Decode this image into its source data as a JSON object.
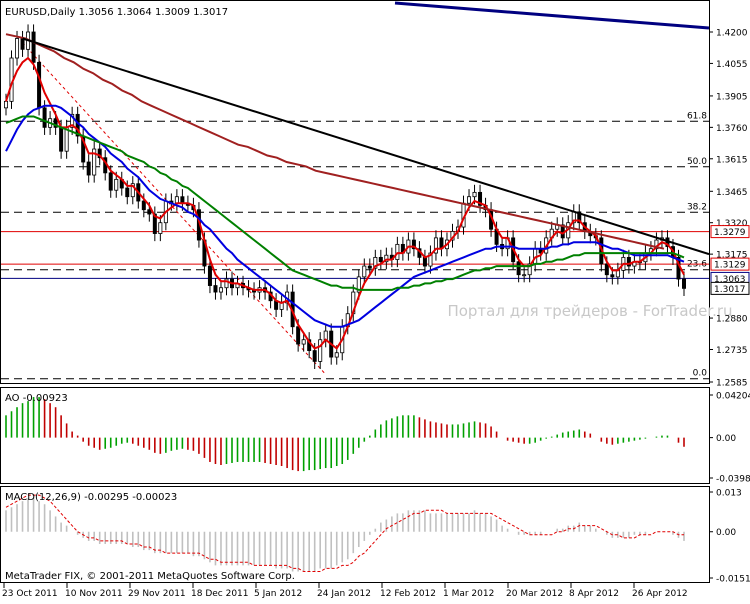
{
  "chart_data": [
    {
      "type": "line",
      "title": "EURUSD,Daily  1.3056 1.3064 1.3009 1.3017",
      "watermark": "Портал для трейдеров - ForTrader.ru",
      "y_ticks": [
        "1.4200",
        "1.4055",
        "1.3905",
        "1.3760",
        "1.3615",
        "1.3465",
        "1.3320",
        "1.3175",
        "1.2880",
        "1.2735",
        "1.2585"
      ],
      "ylim": [
        1.2585,
        1.42
      ],
      "price_labels": [
        {
          "value": 1.3279,
          "text": "1.3279",
          "color": "#e00000"
        },
        {
          "value": 1.3129,
          "text": "1.3129",
          "color": "#e00000"
        },
        {
          "value": 1.3063,
          "text": "1.3063",
          "color": "#000080"
        },
        {
          "value": 1.3017,
          "text": "1.3017",
          "color": "#000000"
        }
      ],
      "fib_levels": [
        {
          "label": "61.8",
          "value": 1.3788
        },
        {
          "label": "50.0",
          "value": 1.3578
        },
        {
          "label": "38.2",
          "value": 1.3368
        },
        {
          "label": "23.6",
          "value": 1.3103
        },
        {
          "label": "0.0",
          "value": 1.26
        }
      ],
      "x_labels": [
        "23 Oct 2011",
        "10 Nov 2011",
        "29 Nov 2011",
        "18 Dec 2011",
        "5 Jan 2012",
        "24 Jan 2012",
        "12 Feb 2012",
        "1 Mar 2012",
        "20 Mar 2012",
        "8 Apr 2012",
        "26 Apr 2012"
      ],
      "close": [
        1.388,
        1.408,
        1.417,
        1.412,
        1.42,
        1.406,
        1.385,
        1.376,
        1.38,
        1.376,
        1.365,
        1.376,
        1.382,
        1.372,
        1.36,
        1.354,
        1.366,
        1.362,
        1.355,
        1.347,
        1.352,
        1.348,
        1.344,
        1.35,
        1.342,
        1.338,
        1.336,
        1.327,
        1.332,
        1.342,
        1.341,
        1.344,
        1.341,
        1.34,
        1.338,
        1.324,
        1.312,
        1.303,
        1.3,
        1.302,
        1.306,
        1.302,
        1.304,
        1.302,
        1.301,
        1.3,
        1.302,
        1.3,
        1.296,
        1.292,
        1.295,
        1.3,
        1.284,
        1.276,
        1.278,
        1.273,
        1.268,
        1.278,
        1.282,
        1.27,
        1.272,
        1.284,
        1.29,
        1.3,
        1.307,
        1.312,
        1.311,
        1.316,
        1.314,
        1.317,
        1.315,
        1.322,
        1.318,
        1.324,
        1.32,
        1.316,
        1.312,
        1.318,
        1.325,
        1.32,
        1.324,
        1.328,
        1.33,
        1.341,
        1.344,
        1.346,
        1.34,
        1.338,
        1.329,
        1.322,
        1.32,
        1.325,
        1.314,
        1.308,
        1.308,
        1.313,
        1.32,
        1.318,
        1.325,
        1.329,
        1.331,
        1.325,
        1.332,
        1.337,
        1.332,
        1.328,
        1.326,
        1.325,
        1.313,
        1.308,
        1.307,
        1.31,
        1.316,
        1.312,
        1.314,
        1.314,
        1.318,
        1.32,
        1.324,
        1.325,
        1.321,
        1.316,
        1.306,
        1.3017
      ],
      "moving_averages": [
        {
          "color": "#e00000",
          "values": [
            1.388,
            1.396,
            1.402,
            1.406,
            1.408,
            1.405,
            1.399,
            1.392,
            1.387,
            1.382,
            1.376,
            1.376,
            1.377,
            1.375,
            1.37,
            1.364,
            1.364,
            1.363,
            1.36,
            1.356,
            1.354,
            1.352,
            1.349,
            1.349,
            1.346,
            1.343,
            1.34,
            1.335,
            1.334,
            1.337,
            1.339,
            1.341,
            1.341,
            1.341,
            1.34,
            1.333,
            1.324,
            1.315,
            1.308,
            1.305,
            1.305,
            1.304,
            1.304,
            1.303,
            1.302,
            1.301,
            1.301,
            1.301,
            1.299,
            1.296,
            1.295,
            1.296,
            1.291,
            1.285,
            1.281,
            1.277,
            1.274,
            1.275,
            1.278,
            1.276,
            1.274,
            1.278,
            1.284,
            1.291,
            1.298,
            1.304,
            1.308,
            1.312,
            1.313,
            1.315,
            1.315,
            1.318,
            1.318,
            1.321,
            1.321,
            1.319,
            1.316,
            1.317,
            1.32,
            1.32,
            1.322,
            1.325,
            1.328,
            1.334,
            1.339,
            1.342,
            1.341,
            1.34,
            1.335,
            1.329,
            1.325,
            1.325,
            1.32,
            1.315,
            1.312,
            1.312,
            1.316,
            1.317,
            1.321,
            1.325,
            1.328,
            1.327,
            1.329,
            1.333,
            1.333,
            1.33,
            1.328,
            1.326,
            1.32,
            1.314,
            1.31,
            1.31,
            1.313,
            1.313,
            1.314,
            1.314,
            1.316,
            1.318,
            1.321,
            1.323,
            1.322,
            1.319,
            1.313,
            1.308
          ]
        },
        {
          "color": "#0000e0",
          "values": [
            1.365,
            1.37,
            1.375,
            1.379,
            1.382,
            1.384,
            1.385,
            1.386,
            1.386,
            1.386,
            1.385,
            1.383,
            1.381,
            1.378,
            1.376,
            1.373,
            1.371,
            1.369,
            1.367,
            1.364,
            1.362,
            1.36,
            1.357,
            1.355,
            1.353,
            1.35,
            1.347,
            1.345,
            1.343,
            1.342,
            1.341,
            1.34,
            1.339,
            1.337,
            1.336,
            1.334,
            1.331,
            1.329,
            1.326,
            1.323,
            1.32,
            1.318,
            1.315,
            1.313,
            1.311,
            1.309,
            1.307,
            1.305,
            1.303,
            1.301,
            1.299,
            1.297,
            1.295,
            1.293,
            1.291,
            1.289,
            1.287,
            1.286,
            1.285,
            1.284,
            1.284,
            1.284,
            1.285,
            1.286,
            1.287,
            1.289,
            1.291,
            1.293,
            1.295,
            1.297,
            1.299,
            1.301,
            1.303,
            1.305,
            1.307,
            1.308,
            1.309,
            1.31,
            1.311,
            1.312,
            1.313,
            1.314,
            1.315,
            1.316,
            1.317,
            1.318,
            1.319,
            1.32,
            1.32,
            1.321,
            1.321,
            1.321,
            1.321,
            1.32,
            1.32,
            1.32,
            1.32,
            1.32,
            1.32,
            1.321,
            1.321,
            1.322,
            1.322,
            1.323,
            1.323,
            1.323,
            1.323,
            1.323,
            1.322,
            1.321,
            1.32,
            1.32,
            1.319,
            1.318,
            1.317,
            1.317,
            1.317,
            1.317,
            1.317,
            1.317,
            1.317,
            1.316,
            1.315,
            1.314
          ]
        },
        {
          "color": "#008000",
          "values": [
            1.378,
            1.379,
            1.38,
            1.381,
            1.381,
            1.381,
            1.38,
            1.379,
            1.378,
            1.377,
            1.376,
            1.375,
            1.374,
            1.373,
            1.372,
            1.371,
            1.37,
            1.369,
            1.368,
            1.367,
            1.366,
            1.365,
            1.363,
            1.362,
            1.361,
            1.36,
            1.358,
            1.357,
            1.355,
            1.354,
            1.352,
            1.351,
            1.349,
            1.348,
            1.346,
            1.344,
            1.342,
            1.34,
            1.338,
            1.336,
            1.334,
            1.332,
            1.33,
            1.328,
            1.326,
            1.324,
            1.322,
            1.32,
            1.318,
            1.316,
            1.314,
            1.312,
            1.31,
            1.309,
            1.308,
            1.307,
            1.306,
            1.305,
            1.304,
            1.303,
            1.303,
            1.302,
            1.302,
            1.302,
            1.301,
            1.301,
            1.301,
            1.301,
            1.301,
            1.301,
            1.301,
            1.302,
            1.302,
            1.302,
            1.303,
            1.303,
            1.304,
            1.304,
            1.305,
            1.305,
            1.306,
            1.306,
            1.307,
            1.308,
            1.309,
            1.31,
            1.31,
            1.311,
            1.311,
            1.312,
            1.312,
            1.312,
            1.312,
            1.312,
            1.312,
            1.312,
            1.313,
            1.313,
            1.314,
            1.314,
            1.315,
            1.315,
            1.316,
            1.317,
            1.317,
            1.318,
            1.318,
            1.318,
            1.318,
            1.318,
            1.318,
            1.318,
            1.318,
            1.318,
            1.318,
            1.318,
            1.318,
            1.318,
            1.318,
            1.318,
            1.318,
            1.318,
            1.317,
            1.316
          ]
        },
        {
          "color": "#a02020",
          "values": [
            1.419,
            1.418,
            1.417,
            1.415,
            1.413,
            1.411,
            1.408,
            1.406,
            1.403,
            1.401,
            1.398,
            1.396,
            1.393,
            1.391,
            1.388,
            1.386,
            1.384,
            1.382,
            1.38,
            1.378,
            1.376,
            1.374,
            1.372,
            1.37,
            1.368,
            1.367,
            1.365,
            1.363,
            1.362,
            1.36,
            1.359,
            1.358,
            1.356,
            1.355,
            1.354,
            1.353,
            1.352,
            1.351,
            1.35,
            1.349,
            1.348,
            1.347,
            1.346,
            1.345,
            1.344,
            1.343,
            1.342,
            1.341,
            1.34,
            1.339,
            1.338,
            1.337,
            1.336,
            1.335,
            1.334,
            1.333,
            1.332,
            1.331,
            1.33,
            1.329,
            1.328,
            1.327,
            1.326,
            1.325,
            1.324,
            1.323,
            1.322,
            1.321,
            1.32
          ]
        }
      ],
      "trendline": {
        "color": "#000000",
        "from": {
          "x": "2011-10-27",
          "y": 1.417
        },
        "to": {
          "x": "2012-05-07",
          "y": 1.318
        }
      }
    },
    {
      "type": "bar",
      "title": "AO -0.00923",
      "y_ticks": [
        "0.04204",
        "0.00",
        "-0.03982"
      ],
      "ylim": [
        -0.03982,
        0.04204
      ],
      "positive_color": "#00a000",
      "negative_color": "#c00000",
      "values": [
        0.022,
        0.026,
        0.03,
        0.034,
        0.036,
        0.04,
        0.04,
        0.038,
        0.034,
        0.03,
        0.022,
        0.014,
        0.006,
        0.002,
        -0.004,
        -0.008,
        -0.01,
        -0.012,
        -0.011,
        -0.01,
        -0.008,
        -0.006,
        -0.005,
        -0.006,
        -0.008,
        -0.01,
        -0.012,
        -0.015,
        -0.016,
        -0.015,
        -0.013,
        -0.012,
        -0.011,
        -0.012,
        -0.013,
        -0.016,
        -0.02,
        -0.024,
        -0.026,
        -0.027,
        -0.026,
        -0.025,
        -0.024,
        -0.024,
        -0.024,
        -0.024,
        -0.024,
        -0.025,
        -0.026,
        -0.027,
        -0.028,
        -0.03,
        -0.032,
        -0.033,
        -0.033,
        -0.032,
        -0.032,
        -0.031,
        -0.03,
        -0.03,
        -0.028,
        -0.026,
        -0.022,
        -0.016,
        -0.01,
        -0.004,
        0.002,
        0.008,
        0.013,
        0.017,
        0.019,
        0.021,
        0.022,
        0.022,
        0.022,
        0.02,
        0.018,
        0.016,
        0.015,
        0.014,
        0.013,
        0.013,
        0.013,
        0.014,
        0.015,
        0.016,
        0.015,
        0.014,
        0.011,
        0.006,
        0.0,
        -0.003,
        -0.004,
        -0.005,
        -0.006,
        -0.006,
        -0.005,
        -0.003,
        -0.001,
        0.001,
        0.003,
        0.005,
        0.006,
        0.007,
        0.008,
        0.006,
        0.004,
        0.0,
        -0.004,
        -0.006,
        -0.007,
        -0.006,
        -0.005,
        -0.004,
        -0.003,
        -0.002,
        -0.001,
        0.0,
        0.001,
        0.002,
        0.002,
        0.0,
        -0.005,
        -0.009
      ]
    },
    {
      "type": "bar",
      "title": "MACD(12,26,9) -0.00295 -0.00023",
      "y_ticks": [
        "0.013",
        "0.00",
        "-0.01513"
      ],
      "ylim": [
        -0.01513,
        0.013
      ],
      "bar_color": "#c0c0c0",
      "signal_color": "#e00000",
      "values": [
        0.007,
        0.008,
        0.009,
        0.01,
        0.011,
        0.011,
        0.01,
        0.009,
        0.007,
        0.005,
        0.003,
        0.002,
        0.0,
        -0.001,
        -0.002,
        -0.003,
        -0.003,
        -0.004,
        -0.004,
        -0.004,
        -0.004,
        -0.004,
        -0.004,
        -0.005,
        -0.005,
        -0.006,
        -0.006,
        -0.007,
        -0.007,
        -0.007,
        -0.007,
        -0.007,
        -0.007,
        -0.007,
        -0.008,
        -0.008,
        -0.009,
        -0.01,
        -0.011,
        -0.011,
        -0.011,
        -0.011,
        -0.011,
        -0.011,
        -0.011,
        -0.011,
        -0.011,
        -0.011,
        -0.011,
        -0.012,
        -0.012,
        -0.012,
        -0.013,
        -0.013,
        -0.013,
        -0.013,
        -0.013,
        -0.012,
        -0.012,
        -0.012,
        -0.011,
        -0.01,
        -0.009,
        -0.007,
        -0.005,
        -0.003,
        -0.001,
        0.001,
        0.003,
        0.004,
        0.005,
        0.006,
        0.006,
        0.007,
        0.007,
        0.007,
        0.007,
        0.006,
        0.006,
        0.006,
        0.006,
        0.006,
        0.006,
        0.006,
        0.006,
        0.007,
        0.006,
        0.006,
        0.005,
        0.004,
        0.002,
        0.001,
        0.0,
        -0.001,
        -0.001,
        -0.001,
        -0.001,
        -0.001,
        0.0,
        0.0,
        0.001,
        0.001,
        0.002,
        0.002,
        0.003,
        0.002,
        0.002,
        0.001,
        0.0,
        -0.001,
        -0.002,
        -0.002,
        -0.002,
        -0.002,
        -0.001,
        -0.001,
        -0.001,
        0.0,
        0.0,
        0.0,
        0.0,
        -0.001,
        -0.002,
        -0.003
      ],
      "signal": [
        0.008,
        0.009,
        0.01,
        0.011,
        0.012,
        0.012,
        0.012,
        0.011,
        0.01,
        0.008,
        0.006,
        0.004,
        0.002,
        0.0,
        -0.001,
        -0.002,
        -0.002,
        -0.003,
        -0.003,
        -0.003,
        -0.003,
        -0.003,
        -0.004,
        -0.004,
        -0.004,
        -0.005,
        -0.005,
        -0.006,
        -0.006,
        -0.007,
        -0.007,
        -0.007,
        -0.007,
        -0.007,
        -0.007,
        -0.007,
        -0.008,
        -0.009,
        -0.009,
        -0.01,
        -0.01,
        -0.01,
        -0.01,
        -0.01,
        -0.01,
        -0.011,
        -0.011,
        -0.011,
        -0.011,
        -0.011,
        -0.011,
        -0.011,
        -0.012,
        -0.012,
        -0.013,
        -0.013,
        -0.013,
        -0.013,
        -0.012,
        -0.012,
        -0.012,
        -0.011,
        -0.011,
        -0.01,
        -0.008,
        -0.007,
        -0.005,
        -0.003,
        -0.001,
        0.001,
        0.002,
        0.003,
        0.004,
        0.005,
        0.006,
        0.006,
        0.007,
        0.007,
        0.007,
        0.007,
        0.006,
        0.006,
        0.006,
        0.006,
        0.006,
        0.006,
        0.006,
        0.006,
        0.006,
        0.005,
        0.004,
        0.003,
        0.002,
        0.001,
        0.0,
        -0.001,
        -0.001,
        -0.001,
        -0.001,
        -0.001,
        0.0,
        0.0,
        0.001,
        0.001,
        0.002,
        0.002,
        0.002,
        0.002,
        0.001,
        0.0,
        -0.001,
        -0.001,
        -0.002,
        -0.002,
        -0.002,
        -0.001,
        -0.001,
        -0.001,
        0.0,
        0.0,
        0.0,
        0.0,
        -0.001,
        -0.001
      ]
    }
  ],
  "footer": {
    "copyright": "MetaTrader FIX, © 2001-2011 MetaQuotes Software Corp."
  }
}
